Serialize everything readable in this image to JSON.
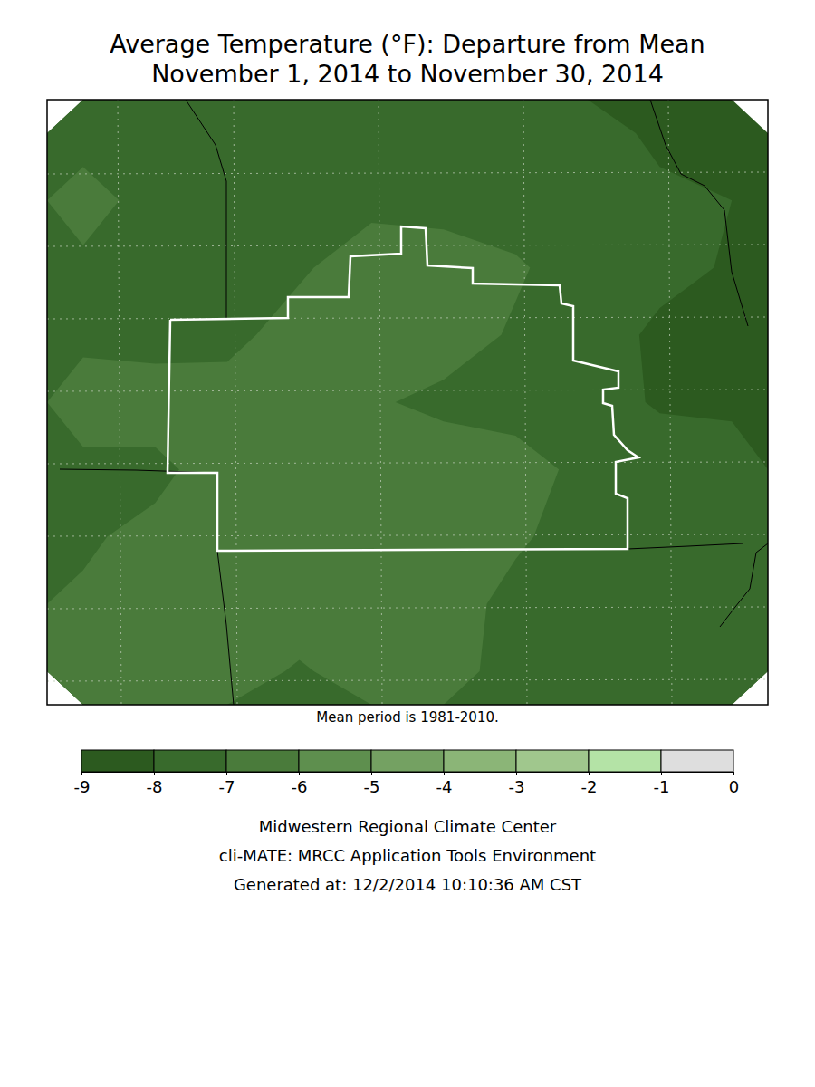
{
  "chart_data": {
    "type": "contour",
    "title": [
      "Average Temperature (°F): Departure from Mean",
      "November 1, 2014 to November 30, 2014"
    ],
    "note": "Mean period is 1981-2010.",
    "cells": [
      [
        -7.2,
        -7.3,
        -7.4,
        -7.5,
        -7.5,
        -7.4,
        -7.4,
        -7.6,
        -8.2,
        -8.4
      ],
      [
        -6.8,
        -7.2,
        -7.4,
        -7.4,
        -7.2,
        -7.3,
        -7.4,
        -7.5,
        -7.8,
        -8.0
      ],
      [
        -7.1,
        -7.3,
        -7.4,
        -7.1,
        -6.6,
        -6.6,
        -6.9,
        -7.4,
        -7.7,
        -8.1
      ],
      [
        -7.2,
        -7.3,
        -7.2,
        -6.7,
        -6.5,
        -6.6,
        -7.1,
        -7.5,
        -8.2,
        -8.3
      ],
      [
        -6.6,
        -6.6,
        -6.7,
        -6.5,
        -6.9,
        -7.2,
        -7.3,
        -7.6,
        -8.1,
        -8.2
      ],
      [
        -7.2,
        -7.2,
        -6.6,
        -6.5,
        -6.5,
        -6.5,
        -6.7,
        -7.2,
        -7.5,
        -7.5
      ],
      [
        -7.1,
        -6.8,
        -6.5,
        -6.5,
        -6.6,
        -6.6,
        -6.9,
        -7.3,
        -7.4,
        -7.4
      ],
      [
        -6.9,
        -6.5,
        -6.5,
        -6.5,
        -6.6,
        -6.7,
        -7.2,
        -7.3,
        -7.3,
        -7.4
      ],
      [
        -7.0,
        -6.5,
        -6.6,
        -7.1,
        -6.6,
        -6.8,
        -7.2,
        -7.3,
        -7.3,
        -7.3
      ]
    ],
    "colorbar": {
      "range": [
        -9,
        0
      ],
      "ticks": [
        -9,
        -8,
        -7,
        -6,
        -5,
        -4,
        -3,
        -2,
        -1,
        0
      ],
      "colors": [
        "#2c5a1f",
        "#386a2c",
        "#4a7b3b",
        "#5e8f4e",
        "#74a162",
        "#8bb577",
        "#a0c78d",
        "#b4e3a6",
        "#dedede"
      ]
    },
    "credits": [
      "Midwestern Regional Climate Center",
      "cli-MATE: MRCC Application Tools Environment",
      "Generated at: 12/2/2014 10:10:36 AM CST"
    ]
  }
}
